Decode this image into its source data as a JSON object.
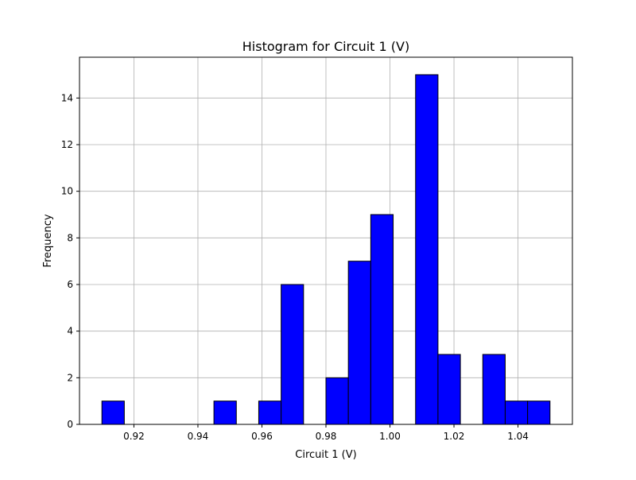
{
  "chart_data": {
    "type": "bar",
    "title": "Histogram for Circuit 1 (V)",
    "xlabel": "Circuit 1 (V)",
    "ylabel": "Frequency",
    "xlim": [
      0.903,
      1.057
    ],
    "ylim": [
      0,
      15.75
    ],
    "grid": true,
    "xticks": [
      0.92,
      0.94,
      0.96,
      0.98,
      1.0,
      1.02,
      1.04
    ],
    "xtick_labels": [
      "0.92",
      "0.94",
      "0.96",
      "0.98",
      "1.00",
      "1.02",
      "1.04"
    ],
    "yticks": [
      0,
      2,
      4,
      6,
      8,
      10,
      12,
      14
    ],
    "ytick_labels": [
      "0",
      "2",
      "4",
      "6",
      "8",
      "10",
      "12",
      "14"
    ],
    "bin_edges": [
      0.91,
      0.917,
      0.924,
      0.931,
      0.938,
      0.945,
      0.952,
      0.959,
      0.966,
      0.973,
      0.98,
      0.987,
      0.994,
      1.001,
      1.008,
      1.015,
      1.022,
      1.029,
      1.036,
      1.043,
      1.05
    ],
    "values": [
      1,
      0,
      0,
      0,
      0,
      1,
      0,
      1,
      6,
      0,
      2,
      7,
      9,
      0,
      15,
      3,
      0,
      3,
      1,
      1
    ],
    "colors": {
      "bar_fill": "#0000ff",
      "bar_edge": "#000000",
      "grid": "#b0b0b0"
    }
  }
}
